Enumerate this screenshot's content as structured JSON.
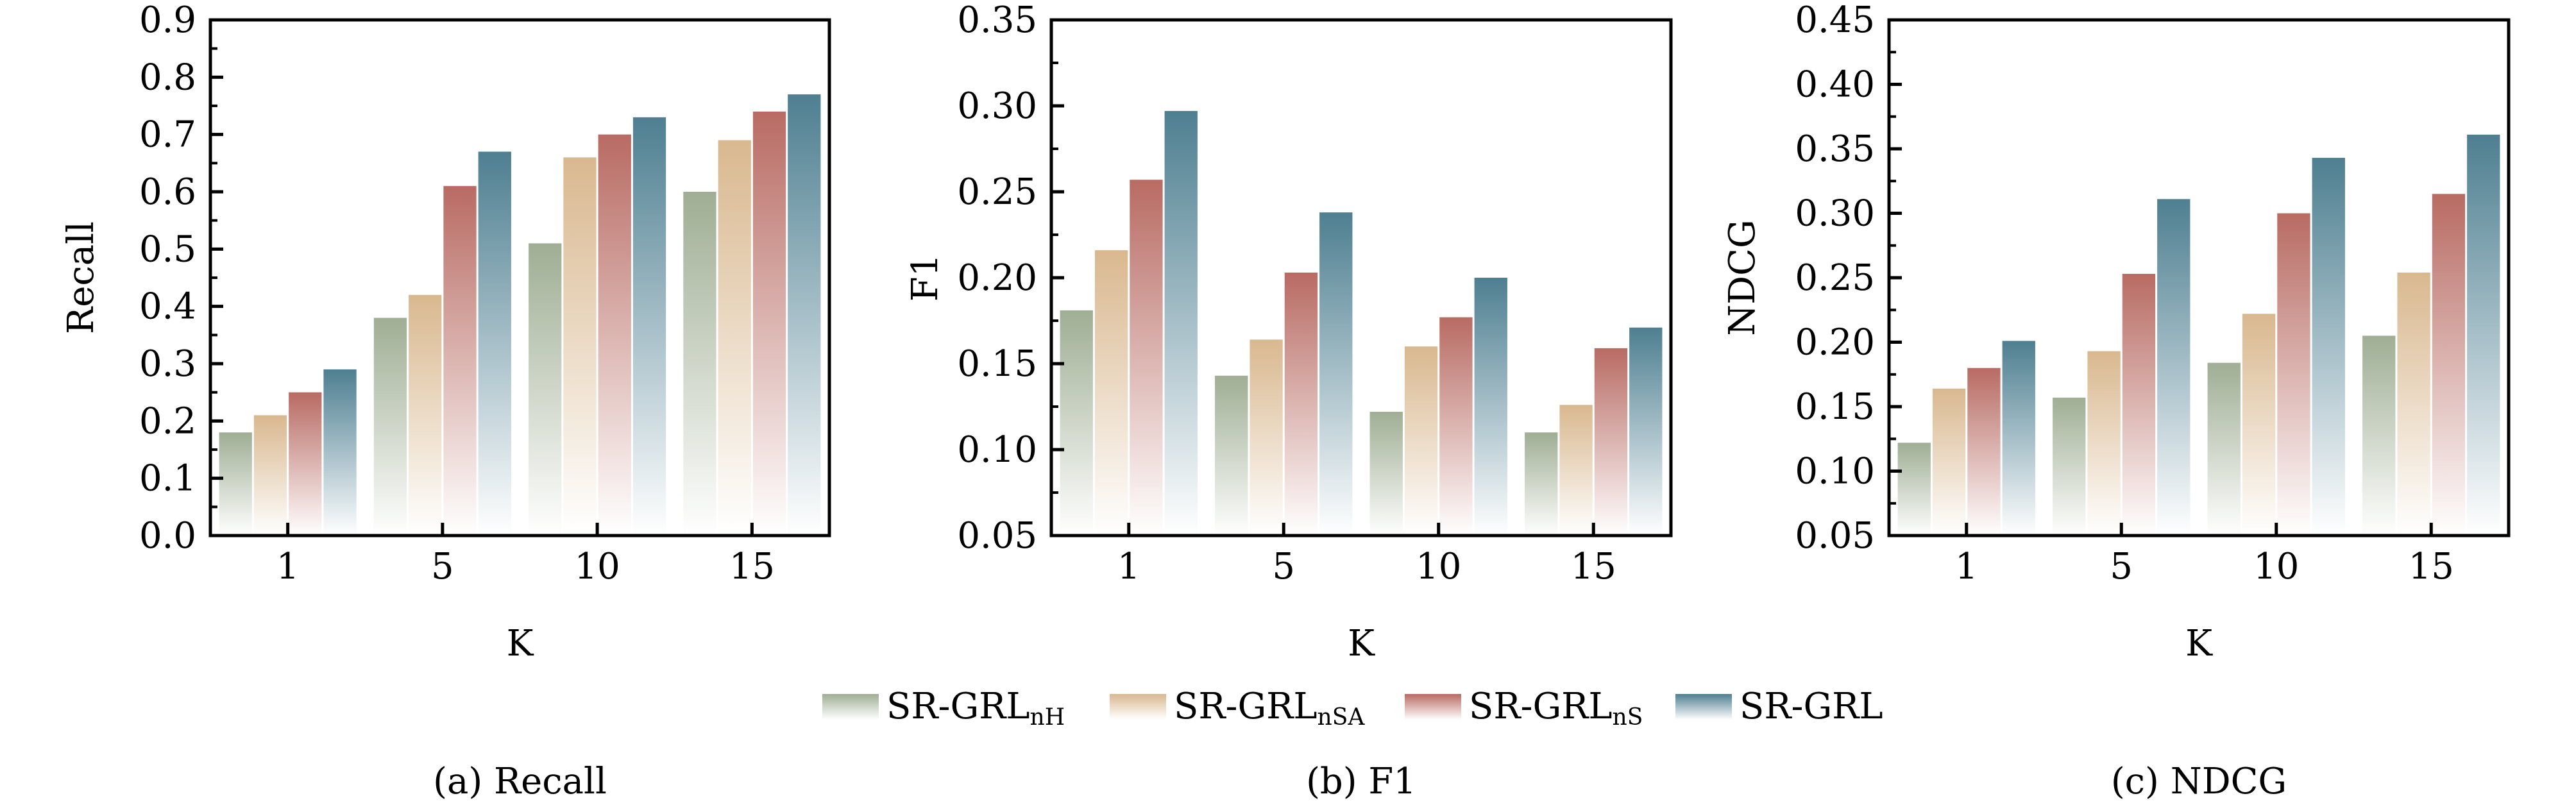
{
  "legend": {
    "placement": "bottom-center",
    "items": [
      {
        "base": "SR-GRL",
        "sub": "nH",
        "color": "#9fae94"
      },
      {
        "base": "SR-GRL",
        "sub": "nSA",
        "color": "#d9b88f"
      },
      {
        "base": "SR-GRL",
        "sub": "nS",
        "color": "#b86b63"
      },
      {
        "base": "SR-GRL",
        "sub": "",
        "color": "#4e7f91"
      }
    ]
  },
  "chart_data": [
    {
      "type": "bar",
      "caption": "(a) Recall",
      "xlabel": "K",
      "ylabel": "Recall",
      "categories": [
        "1",
        "5",
        "10",
        "15"
      ],
      "ylim": [
        0.0,
        0.9
      ],
      "yticks": [
        "0.0",
        "0.1",
        "0.2",
        "0.3",
        "0.4",
        "0.5",
        "0.6",
        "0.7",
        "0.8",
        "0.9"
      ],
      "grid": false,
      "series": [
        {
          "name": "SR-GRL_nH",
          "values": [
            0.18,
            0.38,
            0.51,
            0.6
          ]
        },
        {
          "name": "SR-GRL_nSA",
          "values": [
            0.21,
            0.42,
            0.66,
            0.69
          ]
        },
        {
          "name": "SR-GRL_nS",
          "values": [
            0.25,
            0.61,
            0.7,
            0.74
          ]
        },
        {
          "name": "SR-GRL",
          "values": [
            0.29,
            0.67,
            0.73,
            0.77
          ]
        }
      ]
    },
    {
      "type": "bar",
      "caption": "(b) F1",
      "xlabel": "K",
      "ylabel": "F1",
      "categories": [
        "1",
        "5",
        "10",
        "15"
      ],
      "ylim": [
        0.05,
        0.35
      ],
      "yticks": [
        "0.05",
        "0.10",
        "0.15",
        "0.20",
        "0.25",
        "0.30",
        "0.35"
      ],
      "grid": false,
      "series": [
        {
          "name": "SR-GRL_nH",
          "values": [
            0.181,
            0.143,
            0.122,
            0.11
          ]
        },
        {
          "name": "SR-GRL_nSA",
          "values": [
            0.216,
            0.164,
            0.16,
            0.126
          ]
        },
        {
          "name": "SR-GRL_nS",
          "values": [
            0.257,
            0.203,
            0.177,
            0.159
          ]
        },
        {
          "name": "SR-GRL",
          "values": [
            0.297,
            0.238,
            0.2,
            0.171
          ]
        }
      ]
    },
    {
      "type": "bar",
      "caption": "(c) NDCG",
      "xlabel": "K",
      "ylabel": "NDCG",
      "categories": [
        "1",
        "5",
        "10",
        "15"
      ],
      "ylim": [
        0.05,
        0.45
      ],
      "yticks": [
        "0.05",
        "0.10",
        "0.15",
        "0.20",
        "0.25",
        "0.30",
        "0.35",
        "0.40",
        "0.45"
      ],
      "grid": false,
      "series": [
        {
          "name": "SR-GRL_nH",
          "values": [
            0.122,
            0.157,
            0.184,
            0.205
          ]
        },
        {
          "name": "SR-GRL_nSA",
          "values": [
            0.164,
            0.193,
            0.222,
            0.254
          ]
        },
        {
          "name": "SR-GRL_nS",
          "values": [
            0.18,
            0.253,
            0.3,
            0.315
          ]
        },
        {
          "name": "SR-GRL",
          "values": [
            0.201,
            0.311,
            0.343,
            0.361
          ]
        }
      ]
    }
  ]
}
